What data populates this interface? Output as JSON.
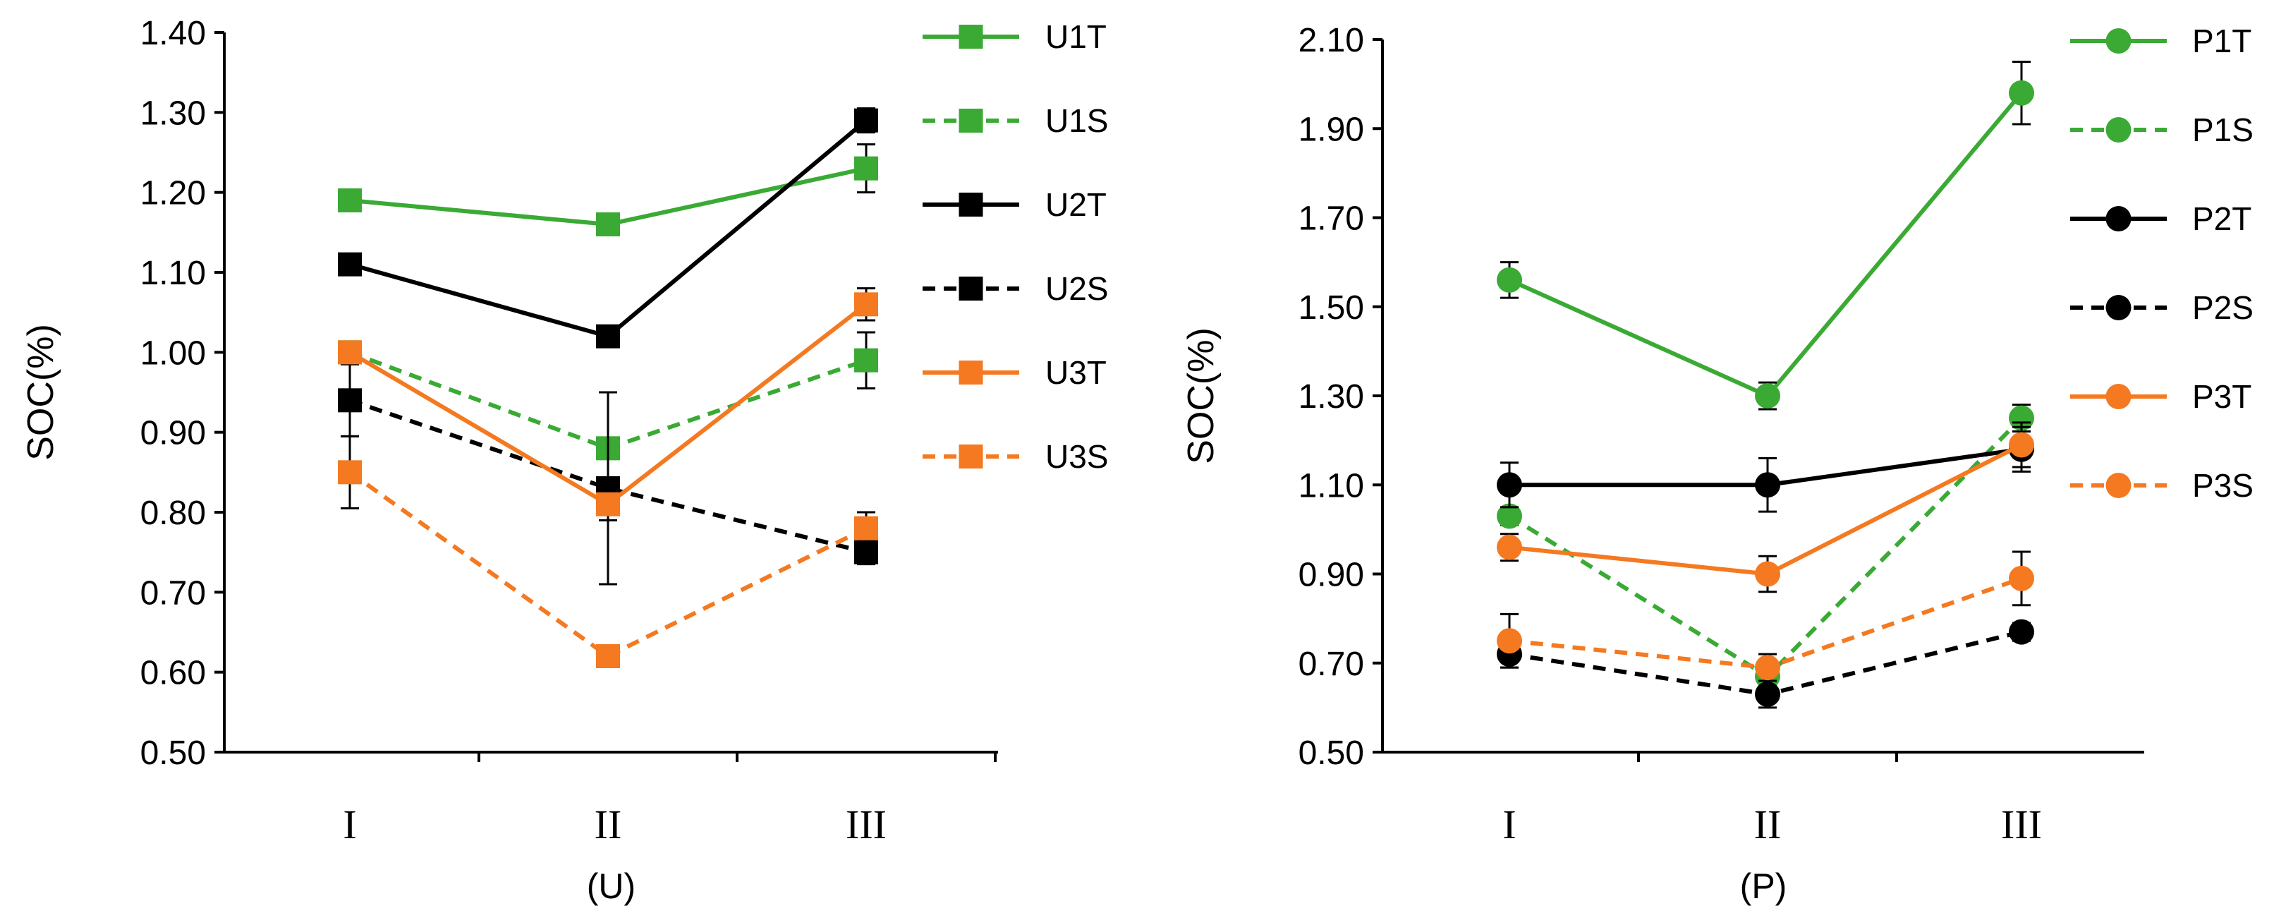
{
  "chart_data": [
    {
      "type": "line",
      "xlabel": "(U)",
      "ylabel": "SOC(%)",
      "categories": [
        "I",
        "II",
        "III"
      ],
      "ylim": [
        0.5,
        1.4
      ],
      "yticks": [
        "0.50",
        "0.60",
        "0.70",
        "0.80",
        "0.90",
        "1.00",
        "1.10",
        "1.20",
        "1.30",
        "1.40"
      ],
      "marker": "square",
      "legend_position": "right",
      "series": [
        {
          "name": "U1T",
          "values": [
            1.19,
            1.16,
            1.23
          ],
          "errors": [
            0.01,
            0.01,
            0.03
          ],
          "color": "#3aaa35",
          "dashed": false
        },
        {
          "name": "U1S",
          "values": [
            1.0,
            0.88,
            0.99
          ],
          "errors": [
            0.01,
            0.01,
            0.035
          ],
          "color": "#3aaa35",
          "dashed": true
        },
        {
          "name": "U2T",
          "values": [
            1.11,
            1.02,
            1.29
          ],
          "errors": [
            0.01,
            0.01,
            0.015
          ],
          "color": "#000000",
          "dashed": false
        },
        {
          "name": "U2S",
          "values": [
            0.94,
            0.83,
            0.75
          ],
          "errors": [
            0.045,
            0.12,
            0.015
          ],
          "color": "#000000",
          "dashed": true
        },
        {
          "name": "U3T",
          "values": [
            1.0,
            0.81,
            1.06
          ],
          "errors": [
            0.01,
            0.02,
            0.02
          ],
          "color": "#f47920",
          "dashed": false
        },
        {
          "name": "U3S",
          "values": [
            0.85,
            0.62,
            0.78
          ],
          "errors": [
            0.045,
            0.01,
            0.02
          ],
          "color": "#f47920",
          "dashed": true
        }
      ]
    },
    {
      "type": "line",
      "xlabel": "(P)",
      "ylabel": "SOC(%)",
      "categories": [
        "I",
        "II",
        "III"
      ],
      "ylim": [
        0.5,
        2.1
      ],
      "yticks": [
        "0.50",
        "0.70",
        "0.90",
        "1.10",
        "1.30",
        "1.50",
        "1.70",
        "1.90",
        "2.10"
      ],
      "marker": "circle",
      "legend_position": "right",
      "series": [
        {
          "name": "P1T",
          "values": [
            1.56,
            1.3,
            1.98
          ],
          "errors": [
            0.04,
            0.03,
            0.07
          ],
          "color": "#3aaa35",
          "dashed": false
        },
        {
          "name": "P1S",
          "values": [
            1.03,
            0.67,
            1.25
          ],
          "errors": [
            0.02,
            0.02,
            0.03
          ],
          "color": "#3aaa35",
          "dashed": true
        },
        {
          "name": "P2T",
          "values": [
            1.1,
            1.1,
            1.18
          ],
          "errors": [
            0.05,
            0.06,
            0.05
          ],
          "color": "#000000",
          "dashed": false
        },
        {
          "name": "P2S",
          "values": [
            0.72,
            0.63,
            0.77
          ],
          "errors": [
            0.03,
            0.03,
            0.02
          ],
          "color": "#000000",
          "dashed": true
        },
        {
          "name": "P3T",
          "values": [
            0.96,
            0.9,
            1.19
          ],
          "errors": [
            0.03,
            0.04,
            0.05
          ],
          "color": "#f47920",
          "dashed": false
        },
        {
          "name": "P3S",
          "values": [
            0.75,
            0.69,
            0.89
          ],
          "errors": [
            0.06,
            0.03,
            0.06
          ],
          "color": "#f47920",
          "dashed": true
        }
      ]
    }
  ]
}
